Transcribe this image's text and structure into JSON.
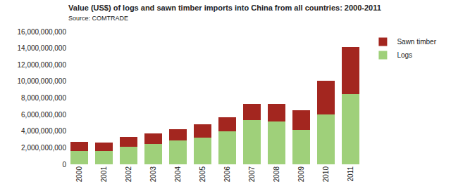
{
  "chart_data": {
    "type": "bar",
    "title": "Value (US$) of logs and sawn timber imports into China from all countries: 2000-2011",
    "subtitle": "Source: COMTRADE",
    "categories": [
      "2000",
      "2001",
      "2002",
      "2003",
      "2004",
      "2005",
      "2006",
      "2007",
      "2008",
      "2009",
      "2010",
      "2011"
    ],
    "series": [
      {
        "name": "Logs",
        "color": "#9fd07a",
        "values": [
          1650000000,
          1600000000,
          2100000000,
          2450000000,
          2850000000,
          3250000000,
          4000000000,
          5350000000,
          5200000000,
          4150000000,
          6050000000,
          8500000000
        ]
      },
      {
        "name": "Sawn timber",
        "color": "#a3261f",
        "values": [
          1050000000,
          1050000000,
          1200000000,
          1300000000,
          1350000000,
          1550000000,
          1700000000,
          1900000000,
          2100000000,
          2350000000,
          4000000000,
          5600000000
        ]
      }
    ],
    "stacked": true,
    "grid": false,
    "legend": "top right",
    "ylim": [
      0,
      16000000000
    ],
    "yticks": [
      0,
      {
        "value": 2000000000,
        "label": "2,000,000,000"
      },
      {
        "value": 4000000000,
        "label": "4,000,000,000"
      },
      {
        "value": 6000000000,
        "label": "6,000,000,000"
      },
      {
        "value": 8000000000,
        "label": "8,000,000,000"
      },
      {
        "value": 10000000000,
        "label": "10,000,000,000"
      },
      {
        "value": 12000000000,
        "label": "12,000,000,000"
      },
      {
        "value": 14000000000,
        "label": "14,000,000,000"
      },
      {
        "value": 16000000000,
        "label": "16,000,000,000"
      }
    ]
  }
}
